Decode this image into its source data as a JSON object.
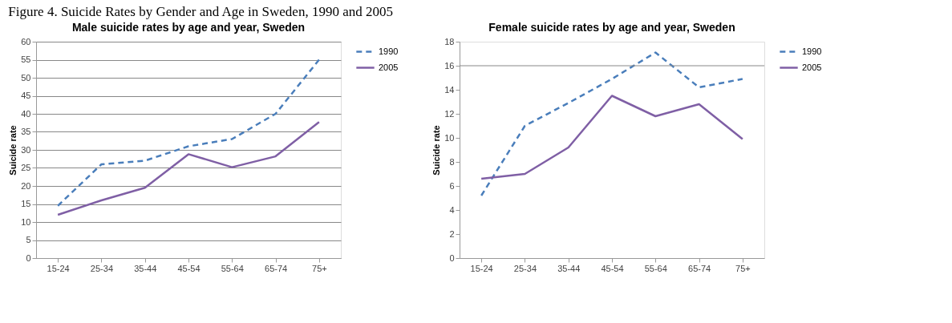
{
  "chart_data": [
    {
      "type": "line",
      "title": "Male suicide rates by age and year, Sweden",
      "annotations": [
        "Figure 4. Suicide Rates by Gender and Age in Sweden, 1990 and 2005"
      ],
      "ylabel": "Suicide rate",
      "categories": [
        "15-24",
        "25-34",
        "35-44",
        "45-54",
        "55-64",
        "65-74",
        "75+"
      ],
      "ylim": [
        0,
        60
      ],
      "yticks": [
        0,
        5,
        10,
        15,
        20,
        25,
        30,
        35,
        40,
        45,
        50,
        55,
        60
      ],
      "grid": "y",
      "legend": "right",
      "marker": "none",
      "series": [
        {
          "name": "1990",
          "color": "#4a7ebb",
          "line_style": "dashed",
          "values": [
            14.5,
            26,
            27,
            31,
            33,
            40,
            55
          ]
        },
        {
          "name": "2005",
          "color": "#7f5fa5",
          "line_style": "solid",
          "values": [
            12,
            16,
            19.5,
            28.8,
            25.2,
            28.2,
            37.7
          ]
        }
      ]
    },
    {
      "type": "line",
      "title": "Female suicide rates by age and year, Sweden",
      "ylabel": "Suicide rate",
      "categories": [
        "15-24",
        "25-34",
        "35-44",
        "45-54",
        "55-64",
        "65-74",
        "75+"
      ],
      "ylim": [
        0,
        18
      ],
      "yticks": [
        0,
        2,
        4,
        6,
        8,
        10,
        12,
        14,
        16,
        18
      ],
      "legend": "right",
      "marker": "none",
      "ref_lines": [
        {
          "axis": "y",
          "value": 16
        }
      ],
      "series": [
        {
          "name": "1990",
          "color": "#4a7ebb",
          "line_style": "dashed",
          "values": [
            5.2,
            11,
            12.9,
            14.9,
            17.1,
            14.2,
            14.9
          ]
        },
        {
          "name": "2005",
          "color": "#7f5fa5",
          "line_style": "solid",
          "values": [
            6.6,
            7,
            9.2,
            13.5,
            11.8,
            12.8,
            9.9
          ]
        }
      ]
    }
  ]
}
